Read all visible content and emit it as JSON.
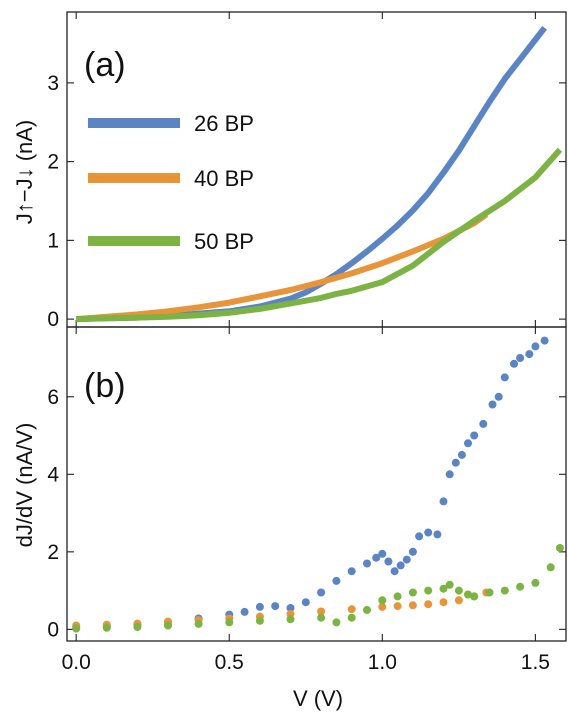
{
  "chart_data": [
    {
      "type": "line",
      "panel_label": "(a)",
      "ylabel": "J↑−J↓ (nA)",
      "xlabel": "",
      "xlim": [
        -0.03,
        1.6
      ],
      "ylim": [
        -0.1,
        3.9
      ],
      "yticks": [
        "0",
        "1",
        "2",
        "3"
      ],
      "ytick_values": [
        0,
        1,
        2,
        3
      ],
      "xticks": [
        "",
        "",
        "",
        ""
      ],
      "xtick_values": [
        0,
        0.5,
        1.0,
        1.5
      ],
      "legend": "top-left",
      "grid": false,
      "series": [
        {
          "name": "26 BP",
          "color": "#5b84c4",
          "x": [
            0,
            0.1,
            0.2,
            0.3,
            0.4,
            0.5,
            0.6,
            0.7,
            0.75,
            0.8,
            0.85,
            0.9,
            0.95,
            1.0,
            1.05,
            1.1,
            1.15,
            1.2,
            1.25,
            1.3,
            1.35,
            1.4,
            1.45,
            1.5,
            1.53
          ],
          "y": [
            0,
            0.01,
            0.02,
            0.04,
            0.07,
            0.1,
            0.16,
            0.26,
            0.34,
            0.45,
            0.57,
            0.71,
            0.86,
            1.02,
            1.19,
            1.38,
            1.6,
            1.86,
            2.14,
            2.45,
            2.76,
            3.05,
            3.3,
            3.55,
            3.7
          ]
        },
        {
          "name": "40 BP",
          "color": "#e8953a",
          "x": [
            0,
            0.1,
            0.2,
            0.3,
            0.4,
            0.5,
            0.6,
            0.7,
            0.8,
            0.9,
            1.0,
            1.1,
            1.2,
            1.3,
            1.34
          ],
          "y": [
            0,
            0.03,
            0.06,
            0.1,
            0.15,
            0.21,
            0.29,
            0.37,
            0.47,
            0.58,
            0.71,
            0.86,
            1.02,
            1.22,
            1.33
          ]
        },
        {
          "name": "50 BP",
          "color": "#7cb342",
          "x": [
            0,
            0.1,
            0.2,
            0.3,
            0.4,
            0.5,
            0.6,
            0.7,
            0.8,
            0.85,
            0.9,
            1.0,
            1.1,
            1.2,
            1.3,
            1.4,
            1.5,
            1.58
          ],
          "y": [
            0,
            0.01,
            0.02,
            0.03,
            0.05,
            0.08,
            0.13,
            0.2,
            0.27,
            0.32,
            0.36,
            0.47,
            0.68,
            0.98,
            1.25,
            1.5,
            1.8,
            2.15
          ]
        }
      ]
    },
    {
      "type": "scatter",
      "panel_label": "(b)",
      "ylabel": "dJ/dV (nA/V)",
      "xlabel": "V (V)",
      "xlim": [
        -0.03,
        1.6
      ],
      "ylim": [
        -0.3,
        7.8
      ],
      "yticks": [
        "0",
        "2",
        "4",
        "6"
      ],
      "ytick_values": [
        0,
        2,
        4,
        6
      ],
      "xticks": [
        "0.0",
        "0.5",
        "1.0",
        "1.5"
      ],
      "xtick_values": [
        0,
        0.5,
        1.0,
        1.5
      ],
      "grid": false,
      "series": [
        {
          "name": "26 BP",
          "color": "#5b84c4",
          "x": [
            0,
            0.1,
            0.2,
            0.3,
            0.4,
            0.5,
            0.55,
            0.6,
            0.65,
            0.7,
            0.75,
            0.8,
            0.85,
            0.9,
            0.95,
            0.98,
            1.0,
            1.02,
            1.04,
            1.06,
            1.08,
            1.1,
            1.12,
            1.15,
            1.18,
            1.2,
            1.22,
            1.24,
            1.26,
            1.28,
            1.3,
            1.33,
            1.36,
            1.38,
            1.4,
            1.43,
            1.45,
            1.48,
            1.5,
            1.53
          ],
          "y": [
            0.05,
            0.08,
            0.12,
            0.18,
            0.28,
            0.38,
            0.45,
            0.58,
            0.6,
            0.55,
            0.7,
            0.95,
            1.25,
            1.5,
            1.7,
            1.85,
            1.95,
            1.75,
            1.5,
            1.65,
            1.8,
            2.0,
            2.4,
            2.5,
            2.45,
            3.3,
            4.0,
            4.3,
            4.5,
            4.8,
            5.0,
            5.3,
            5.8,
            6.0,
            6.5,
            6.85,
            7.0,
            7.1,
            7.3,
            7.45
          ]
        },
        {
          "name": "40 BP",
          "color": "#e8953a",
          "x": [
            0,
            0.1,
            0.2,
            0.3,
            0.4,
            0.5,
            0.6,
            0.7,
            0.8,
            0.9,
            1.0,
            1.05,
            1.1,
            1.15,
            1.2,
            1.25,
            1.3,
            1.34
          ],
          "y": [
            0.1,
            0.12,
            0.15,
            0.2,
            0.24,
            0.28,
            0.33,
            0.4,
            0.46,
            0.52,
            0.58,
            0.6,
            0.62,
            0.65,
            0.7,
            0.75,
            0.85,
            0.95
          ]
        },
        {
          "name": "50 BP",
          "color": "#7cb342",
          "x": [
            0,
            0.1,
            0.2,
            0.3,
            0.4,
            0.5,
            0.6,
            0.7,
            0.8,
            0.85,
            0.9,
            0.95,
            1.0,
            1.05,
            1.1,
            1.15,
            1.2,
            1.22,
            1.25,
            1.28,
            1.3,
            1.35,
            1.4,
            1.45,
            1.5,
            1.55,
            1.58
          ],
          "y": [
            0.02,
            0.04,
            0.06,
            0.1,
            0.14,
            0.18,
            0.22,
            0.26,
            0.3,
            0.18,
            0.3,
            0.5,
            0.75,
            0.85,
            0.95,
            1.0,
            1.05,
            1.15,
            1.0,
            0.9,
            0.85,
            0.95,
            1.0,
            1.1,
            1.2,
            1.6,
            2.1
          ]
        }
      ]
    }
  ]
}
